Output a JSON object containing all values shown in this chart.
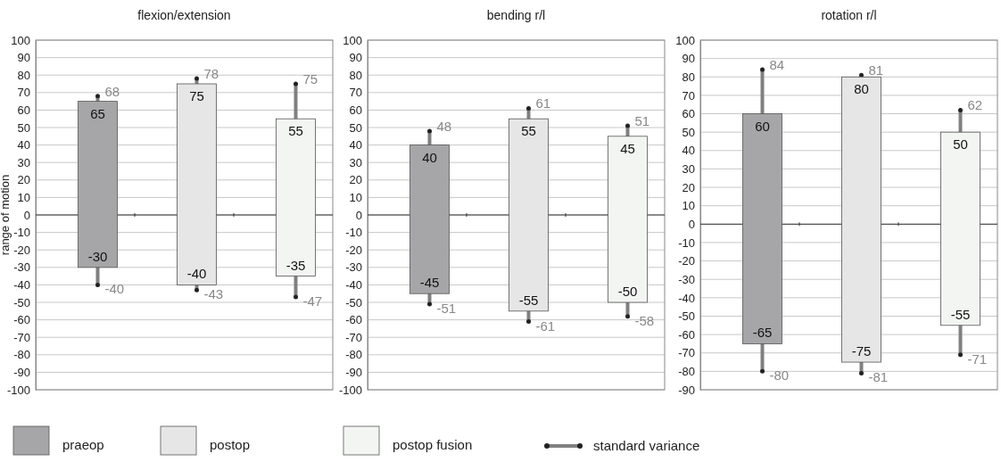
{
  "chart_data": [
    {
      "type": "bar",
      "title": "flexion/extension",
      "ylabel": "range of motion",
      "categories": [
        null
      ],
      "ylim": [
        -100,
        100
      ],
      "yticks": [
        -100,
        -90,
        -80,
        -70,
        -60,
        -50,
        -40,
        -30,
        -20,
        -10,
        0,
        10,
        20,
        30,
        40,
        50,
        60,
        70,
        80,
        90,
        100
      ],
      "grid": "y",
      "tick_labels": "y",
      "legend": "bottom",
      "series": [
        {
          "name": "praeop",
          "color": "#a6a6a8",
          "values": [
            95
          ],
          "base": [
            -30
          ],
          "errors": [
            [
              -40,
              68
            ]
          ]
        },
        {
          "name": "postop",
          "color": "#e6e6e6",
          "values": [
            115
          ],
          "base": [
            -40
          ],
          "errors": [
            [
              -43,
              78
            ]
          ]
        },
        {
          "name": "postop fusion",
          "color": "#f3f5f3",
          "values": [
            90
          ],
          "base": [
            -35
          ],
          "errors": [
            [
              -47,
              75
            ]
          ]
        }
      ],
      "annotations": [
        "65",
        "-30",
        "75",
        "-40",
        "55",
        "-35",
        "68",
        "-40",
        "78",
        "-43",
        "75",
        "-47",
        "standard variance"
      ]
    },
    {
      "type": "bar",
      "title": "bending r/l",
      "categories": [
        null
      ],
      "ylim": [
        -100,
        100
      ],
      "yticks": [
        -100,
        -90,
        -80,
        -70,
        -60,
        -50,
        -40,
        -30,
        -20,
        -10,
        0,
        10,
        20,
        30,
        40,
        50,
        60,
        70,
        80,
        90,
        100
      ],
      "grid": "y",
      "tick_labels": "y",
      "series": [
        {
          "color": "#a6a6a8",
          "values": [
            85
          ],
          "base": [
            -45
          ],
          "errors": [
            [
              -51,
              48
            ]
          ]
        },
        {
          "color": "#e6e6e6",
          "values": [
            110
          ],
          "base": [
            -55
          ],
          "errors": [
            [
              -61,
              61
            ]
          ]
        },
        {
          "color": "#f3f5f3",
          "values": [
            95
          ],
          "base": [
            -50
          ],
          "errors": [
            [
              -58,
              51
            ]
          ]
        }
      ],
      "annotations": [
        "40",
        "-45",
        "55",
        "-55",
        "45",
        "-50",
        "48",
        "-51",
        "61",
        "-61",
        "51",
        "-58"
      ]
    },
    {
      "type": "bar",
      "title": "rotation r/l",
      "categories": [
        null
      ],
      "ylim": [
        -90,
        100
      ],
      "yticks": [
        -90,
        -80,
        -70,
        -60,
        -50,
        -40,
        -30,
        -20,
        -10,
        0,
        10,
        20,
        30,
        40,
        50,
        60,
        70,
        80,
        90,
        100
      ],
      "grid": "y",
      "tick_labels": "y",
      "series": [
        {
          "color": "#a6a6a8",
          "values": [
            125
          ],
          "base": [
            -65
          ],
          "errors": [
            [
              -80,
              84
            ]
          ]
        },
        {
          "color": "#e6e6e6",
          "values": [
            155
          ],
          "base": [
            -75
          ],
          "errors": [
            [
              -81,
              81
            ]
          ]
        },
        {
          "color": "#f3f5f3",
          "values": [
            105
          ],
          "base": [
            -55
          ],
          "errors": [
            [
              -71,
              62
            ]
          ]
        }
      ],
      "annotations": [
        "60",
        "-65",
        "80",
        "-75",
        "50",
        "-55",
        "84",
        "-80",
        "81",
        "-81",
        "62",
        "-71"
      ]
    }
  ]
}
